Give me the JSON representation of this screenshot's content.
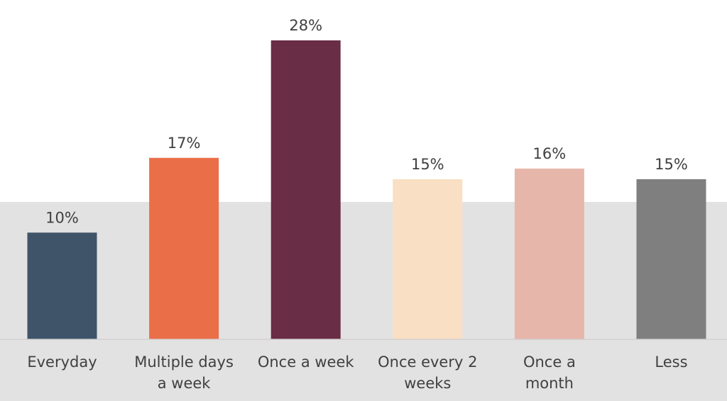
{
  "chart_data": {
    "type": "bar",
    "title": "",
    "xlabel": "",
    "ylabel": "",
    "ylim": [
      0,
      30
    ],
    "grid": false,
    "legend": "none",
    "value_format": "percent",
    "categories": [
      [
        "Everyday"
      ],
      [
        "Multiple days",
        "a week"
      ],
      [
        "Once a week"
      ],
      [
        "Once every 2",
        "weeks"
      ],
      [
        "Once a",
        "month"
      ],
      [
        "Less"
      ]
    ],
    "values": [
      10,
      17,
      28,
      15,
      16,
      15
    ],
    "value_labels": [
      "10%",
      "17%",
      "28%",
      "15%",
      "16%",
      "15%"
    ],
    "colors": [
      "#3f5469",
      "#ea6f48",
      "#692d45",
      "#f9dfc3",
      "#e7b6ab",
      "#7f7f7f"
    ],
    "background_band_color": "#e3e2e2",
    "axis_line_color": "#d2d0d0",
    "text_color": "#404040"
  }
}
